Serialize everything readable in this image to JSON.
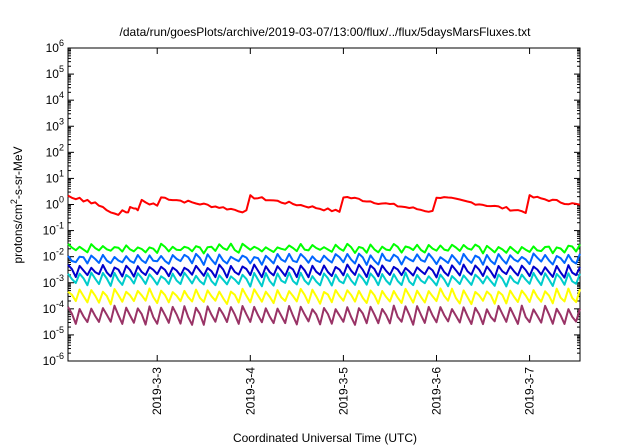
{
  "chart_data": {
    "type": "line",
    "title": "/data/run/goesPlots/archive/2019-03-07/13:00/flux/../flux/5daysMarsFluxes.txt",
    "xlabel": "Coordinated Universal Time (UTC)",
    "ylabel_parts": [
      "protons/cm",
      "2",
      "-s-sr-MeV"
    ],
    "x_scale": "date",
    "x_range": [
      "2019-03-02 01:00",
      "2019-03-07 13:00"
    ],
    "x_ticks": [
      {
        "date": "2019-03-03 00:00",
        "label": "2019-3-3"
      },
      {
        "date": "2019-03-04 00:00",
        "label": "2019-3-4"
      },
      {
        "date": "2019-03-05 00:00",
        "label": "2019-3-5"
      },
      {
        "date": "2019-03-06 00:00",
        "label": "2019-3-6"
      },
      {
        "date": "2019-03-07 00:00",
        "label": "2019-3-7"
      }
    ],
    "y_scale": "log",
    "y_range": [
      1e-06,
      1000000.0
    ],
    "y_ticks": [
      {
        "value": 1e-06,
        "base": "10",
        "exp": "-6"
      },
      {
        "value": 1e-05,
        "base": "10",
        "exp": "-5"
      },
      {
        "value": 0.0001,
        "base": "10",
        "exp": "-4"
      },
      {
        "value": 0.001,
        "base": "10",
        "exp": "-3"
      },
      {
        "value": 0.01,
        "base": "10",
        "exp": "-2"
      },
      {
        "value": 0.1,
        "base": "10",
        "exp": "-1"
      },
      {
        "value": 1,
        "base": "10",
        "exp": "0"
      },
      {
        "value": 10,
        "base": "10",
        "exp": "1"
      },
      {
        "value": 100,
        "base": "10",
        "exp": "2"
      },
      {
        "value": 1000,
        "base": "10",
        "exp": "3"
      },
      {
        "value": 10000,
        "base": "10",
        "exp": "4"
      },
      {
        "value": 100000,
        "base": "10",
        "exp": "5"
      },
      {
        "value": 1000000,
        "base": "10",
        "exp": "6"
      }
    ],
    "grid": false,
    "series": [
      {
        "color": "#ff0000",
        "points": [
          [
            "2019-03-02 01:00",
            2.2
          ],
          [
            "2019-03-02 02:00",
            1.8
          ],
          [
            "2019-03-02 03:00",
            1.6
          ],
          [
            "2019-03-02 04:00",
            1.8
          ],
          [
            "2019-03-02 05:00",
            1.3
          ],
          [
            "2019-03-02 06:00",
            1.5
          ],
          [
            "2019-03-02 07:00",
            1.1
          ],
          [
            "2019-03-02 08:00",
            1.2
          ],
          [
            "2019-03-02 09:00",
            0.9
          ],
          [
            "2019-03-02 10:00",
            0.8
          ],
          [
            "2019-03-02 11:00",
            0.6
          ],
          [
            "2019-03-02 12:00",
            0.5
          ],
          [
            "2019-03-02 13:00",
            0.45
          ],
          [
            "2019-03-02 14:00",
            0.4
          ],
          [
            "2019-03-02 15:00",
            0.6
          ],
          [
            "2019-03-02 16:00",
            0.5
          ],
          [
            "2019-03-02 17:00",
            0.8
          ],
          [
            "2019-03-02 18:00",
            0.7
          ],
          [
            "2019-03-02 19:00",
            0.6
          ],
          [
            "2019-03-02 20:00",
            1.5
          ],
          [
            "2019-03-02 21:00",
            1.2
          ],
          [
            "2019-03-02 22:00",
            1.0
          ],
          [
            "2019-03-02 23:00",
            1.1
          ],
          [
            "2019-03-03 00:00",
            0.9
          ],
          [
            "2019-03-02 16:30",
            0.5
          ],
          [
            "2019-03-02 18:30",
            0.7
          ]
        ]
      }
    ]
  }
}
